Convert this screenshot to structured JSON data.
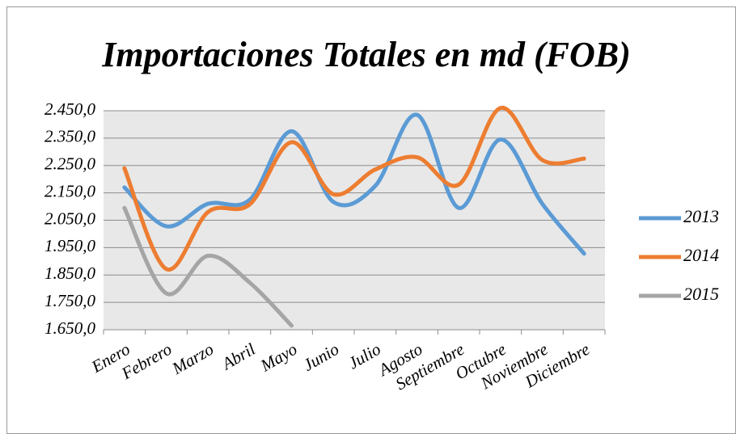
{
  "chart_data": {
    "type": "line",
    "title": "Importaciones Totales en md (FOB)",
    "categories": [
      "Enero",
      "Febrero",
      "Marzo",
      "Abril",
      "Mayo",
      "Junio",
      "Julio",
      "Agosto",
      "Septiembre",
      "Octubre",
      "Noviembre",
      "Diciembre"
    ],
    "series": [
      {
        "name": "2013",
        "color": "#5b9bd5",
        "values": [
          2170,
          2028,
          2110,
          2125,
          2375,
          2117,
          2175,
          2435,
          2095,
          2345,
          2110,
          1928
        ]
      },
      {
        "name": "2014",
        "color": "#ed7d31",
        "values": [
          2240,
          1872,
          2080,
          2108,
          2335,
          2145,
          2235,
          2280,
          2180,
          2460,
          2270,
          2275
        ]
      },
      {
        "name": "2015",
        "color": "#a5a5a5",
        "values": [
          2095,
          1783,
          1920,
          1822,
          1665,
          null,
          null,
          null,
          null,
          null,
          null,
          null
        ]
      }
    ],
    "ylim": [
      1650,
      2450
    ],
    "yticks": [
      {
        "value": 1650,
        "label": "1.650,0"
      },
      {
        "value": 1750,
        "label": "1.750,0"
      },
      {
        "value": 1850,
        "label": "1.850,0"
      },
      {
        "value": 1950,
        "label": "1.950,0"
      },
      {
        "value": 2050,
        "label": "2.050,0"
      },
      {
        "value": 2150,
        "label": "2.150,0"
      },
      {
        "value": 2250,
        "label": "2.250,0"
      },
      {
        "value": 2350,
        "label": "2.350,0"
      },
      {
        "value": 2450,
        "label": "2.450,0"
      }
    ],
    "grid": true,
    "legend": "right"
  }
}
